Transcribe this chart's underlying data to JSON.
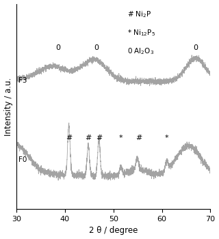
{
  "xlabel": "2 θ / degree",
  "ylabel": "Intensity / a.u.",
  "xlim": [
    30,
    70
  ],
  "xticks": [
    30,
    40,
    50,
    60,
    70
  ],
  "xticklabels": [
    "30",
    "40",
    "50",
    "60",
    "70"
  ],
  "bg_color": "#ffffff",
  "line_color": "#999999",
  "legend_items": [
    {
      "marker": "#",
      "label": "Ni$_2$P"
    },
    {
      "marker": "*",
      "label": "Ni$_{12}$P$_5$"
    },
    {
      "marker": "0",
      "label": "Al$_2$O$_3$"
    }
  ],
  "F3_label": "F3",
  "F0_label": "F0",
  "annotations_F3": [
    {
      "x": 38.5,
      "label": "0"
    },
    {
      "x": 46.5,
      "label": "0"
    },
    {
      "x": 67.0,
      "label": "0"
    }
  ],
  "annotations_F0": [
    {
      "x": 40.8,
      "label": "#"
    },
    {
      "x": 44.8,
      "label": "#"
    },
    {
      "x": 47.0,
      "label": "#"
    },
    {
      "x": 51.5,
      "label": "*"
    },
    {
      "x": 55.2,
      "label": "#"
    },
    {
      "x": 61.0,
      "label": "*"
    }
  ],
  "ylim": [
    0.0,
    1.0
  ],
  "F3_base": 0.6,
  "F0_base": 0.28
}
